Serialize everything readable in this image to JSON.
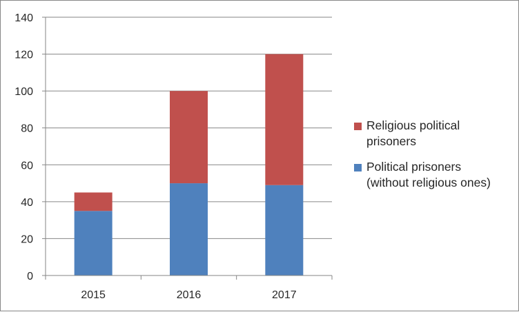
{
  "chart_data": {
    "type": "bar",
    "stacked": true,
    "categories": [
      "2015",
      "2016",
      "2017"
    ],
    "series": [
      {
        "name": "Political prisoners\n(without religious ones)",
        "values": [
          35,
          50,
          49
        ],
        "color": "#4f81bd"
      },
      {
        "name": "Religious political\nprisoners",
        "values": [
          10,
          50,
          71
        ],
        "color": "#c0504d"
      }
    ],
    "ylim": [
      0,
      140
    ],
    "yticks": [
      "0",
      "20",
      "40",
      "60",
      "80",
      "100",
      "120",
      "140"
    ],
    "grid": true,
    "gridColor": "#868686",
    "legend_position": "right"
  }
}
